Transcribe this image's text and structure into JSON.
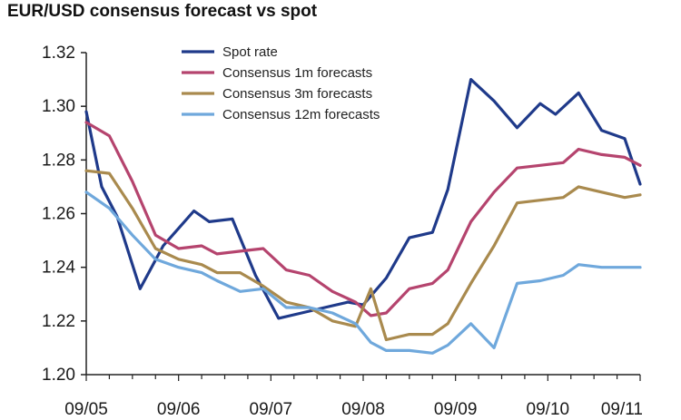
{
  "chart_data": {
    "type": "line",
    "title": "EUR/USD consensus forecast vs spot",
    "xlabel": "",
    "ylabel": "",
    "ylim": [
      1.2,
      1.32
    ],
    "y_ticks": [
      "1.20",
      "1.22",
      "1.24",
      "1.26",
      "1.28",
      "1.30",
      "1.32"
    ],
    "x_ticks": [
      "09/05",
      "09/06",
      "09/07",
      "09/08",
      "09/09",
      "09/10",
      "09/11"
    ],
    "x_range": [
      0,
      6
    ],
    "legend_position": "top-center",
    "grid": false,
    "series": [
      {
        "name": "Spot rate",
        "color": "#1f3a8a",
        "points": [
          [
            0.0,
            1.298
          ],
          [
            0.167,
            1.27
          ],
          [
            0.333,
            1.259
          ],
          [
            0.583,
            1.232
          ],
          [
            0.833,
            1.248
          ],
          [
            1.167,
            1.261
          ],
          [
            1.333,
            1.257
          ],
          [
            1.583,
            1.258
          ],
          [
            1.833,
            1.237
          ],
          [
            2.083,
            1.221
          ],
          [
            2.333,
            1.223
          ],
          [
            2.583,
            1.225
          ],
          [
            2.833,
            1.227
          ],
          [
            3.0,
            1.226
          ],
          [
            3.25,
            1.236
          ],
          [
            3.5,
            1.251
          ],
          [
            3.75,
            1.253
          ],
          [
            3.917,
            1.269
          ],
          [
            4.167,
            1.31
          ],
          [
            4.417,
            1.302
          ],
          [
            4.667,
            1.292
          ],
          [
            4.917,
            1.301
          ],
          [
            5.083,
            1.297
          ],
          [
            5.333,
            1.305
          ],
          [
            5.583,
            1.291
          ],
          [
            5.833,
            1.288
          ],
          [
            6.0,
            1.271
          ]
        ]
      },
      {
        "name": "Consensus 1m forecasts",
        "color": "#b5446e",
        "points": [
          [
            0.0,
            1.294
          ],
          [
            0.25,
            1.289
          ],
          [
            0.5,
            1.272
          ],
          [
            0.75,
            1.252
          ],
          [
            1.0,
            1.247
          ],
          [
            1.25,
            1.248
          ],
          [
            1.417,
            1.245
          ],
          [
            1.667,
            1.246
          ],
          [
            1.917,
            1.247
          ],
          [
            2.167,
            1.239
          ],
          [
            2.417,
            1.237
          ],
          [
            2.667,
            1.231
          ],
          [
            2.917,
            1.227
          ],
          [
            3.083,
            1.222
          ],
          [
            3.25,
            1.223
          ],
          [
            3.5,
            1.232
          ],
          [
            3.75,
            1.234
          ],
          [
            3.917,
            1.239
          ],
          [
            4.167,
            1.257
          ],
          [
            4.417,
            1.268
          ],
          [
            4.667,
            1.277
          ],
          [
            4.917,
            1.278
          ],
          [
            5.167,
            1.279
          ],
          [
            5.333,
            1.284
          ],
          [
            5.583,
            1.282
          ],
          [
            5.833,
            1.281
          ],
          [
            6.0,
            1.278
          ]
        ]
      },
      {
        "name": "Consensus 3m forecasts",
        "color": "#a98a4e",
        "points": [
          [
            0.0,
            1.276
          ],
          [
            0.25,
            1.275
          ],
          [
            0.5,
            1.262
          ],
          [
            0.75,
            1.247
          ],
          [
            1.0,
            1.243
          ],
          [
            1.25,
            1.241
          ],
          [
            1.417,
            1.238
          ],
          [
            1.667,
            1.238
          ],
          [
            1.917,
            1.233
          ],
          [
            2.167,
            1.227
          ],
          [
            2.417,
            1.225
          ],
          [
            2.667,
            1.22
          ],
          [
            2.917,
            1.218
          ],
          [
            3.083,
            1.232
          ],
          [
            3.25,
            1.213
          ],
          [
            3.5,
            1.215
          ],
          [
            3.75,
            1.215
          ],
          [
            3.917,
            1.219
          ],
          [
            4.167,
            1.234
          ],
          [
            4.417,
            1.248
          ],
          [
            4.667,
            1.264
          ],
          [
            4.917,
            1.265
          ],
          [
            5.167,
            1.266
          ],
          [
            5.333,
            1.27
          ],
          [
            5.583,
            1.268
          ],
          [
            5.833,
            1.266
          ],
          [
            6.0,
            1.267
          ]
        ]
      },
      {
        "name": "Consensus 12m forecasts",
        "color": "#6fa8dc",
        "points": [
          [
            0.0,
            1.268
          ],
          [
            0.25,
            1.262
          ],
          [
            0.5,
            1.252
          ],
          [
            0.75,
            1.243
          ],
          [
            1.0,
            1.24
          ],
          [
            1.25,
            1.238
          ],
          [
            1.417,
            1.235
          ],
          [
            1.667,
            1.231
          ],
          [
            1.917,
            1.232
          ],
          [
            2.167,
            1.225
          ],
          [
            2.417,
            1.225
          ],
          [
            2.667,
            1.223
          ],
          [
            2.917,
            1.219
          ],
          [
            3.083,
            1.212
          ],
          [
            3.25,
            1.209
          ],
          [
            3.5,
            1.209
          ],
          [
            3.75,
            1.208
          ],
          [
            3.917,
            1.211
          ],
          [
            4.167,
            1.219
          ],
          [
            4.417,
            1.21
          ],
          [
            4.667,
            1.234
          ],
          [
            4.917,
            1.235
          ],
          [
            5.167,
            1.237
          ],
          [
            5.333,
            1.241
          ],
          [
            5.583,
            1.24
          ],
          [
            5.833,
            1.24
          ],
          [
            6.0,
            1.24
          ]
        ]
      }
    ]
  }
}
